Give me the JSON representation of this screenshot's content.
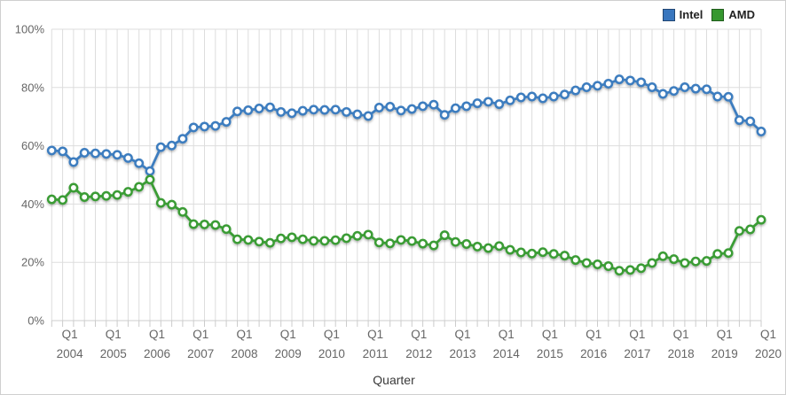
{
  "chart_data": {
    "type": "line",
    "title": "",
    "xlabel": "Quarter",
    "ylabel": "",
    "ylim": [
      0,
      100
    ],
    "grid": true,
    "legend_position": "top-right",
    "y_tick_labels": [
      "0%",
      "20%",
      "40%",
      "60%",
      "80%",
      "100%"
    ],
    "y_tick_values": [
      0,
      20,
      40,
      60,
      80,
      100
    ],
    "x_categories": [
      "Q4 2003",
      "Q1 2004",
      "Q2 2004",
      "Q3 2004",
      "Q4 2004",
      "Q1 2005",
      "Q2 2005",
      "Q3 2005",
      "Q4 2005",
      "Q1 2006",
      "Q2 2006",
      "Q3 2006",
      "Q4 2006",
      "Q1 2007",
      "Q2 2007",
      "Q3 2007",
      "Q4 2007",
      "Q1 2008",
      "Q2 2008",
      "Q3 2008",
      "Q4 2008",
      "Q1 2009",
      "Q2 2009",
      "Q3 2009",
      "Q4 2009",
      "Q1 2010",
      "Q2 2010",
      "Q3 2010",
      "Q4 2010",
      "Q1 2011",
      "Q2 2011",
      "Q3 2011",
      "Q4 2011",
      "Q1 2012",
      "Q2 2012",
      "Q3 2012",
      "Q4 2012",
      "Q1 2013",
      "Q2 2013",
      "Q3 2013",
      "Q4 2013",
      "Q1 2014",
      "Q2 2014",
      "Q3 2014",
      "Q4 2014",
      "Q1 2015",
      "Q2 2015",
      "Q3 2015",
      "Q4 2015",
      "Q1 2016",
      "Q2 2016",
      "Q3 2016",
      "Q4 2016",
      "Q1 2017",
      "Q2 2017",
      "Q3 2017",
      "Q4 2017",
      "Q1 2018",
      "Q2 2018",
      "Q3 2018",
      "Q4 2018",
      "Q1 2019",
      "Q2 2019",
      "Q3 2019",
      "Q4 2019",
      "Q1 2020"
    ],
    "x_tick_labels": [
      {
        "line1": "Q1",
        "line2": "2004"
      },
      {
        "line1": "Q1",
        "line2": "2005"
      },
      {
        "line1": "Q1",
        "line2": "2006"
      },
      {
        "line1": "Q1",
        "line2": "2007"
      },
      {
        "line1": "Q1",
        "line2": "2008"
      },
      {
        "line1": "Q1",
        "line2": "2009"
      },
      {
        "line1": "Q1",
        "line2": "2010"
      },
      {
        "line1": "Q1",
        "line2": "2011"
      },
      {
        "line1": "Q1",
        "line2": "2012"
      },
      {
        "line1": "Q1",
        "line2": "2013"
      },
      {
        "line1": "Q1",
        "line2": "2014"
      },
      {
        "line1": "Q1",
        "line2": "2015"
      },
      {
        "line1": "Q1",
        "line2": "2016"
      },
      {
        "line1": "Q1",
        "line2": "2017"
      },
      {
        "line1": "Q1",
        "line2": "2018"
      },
      {
        "line1": "Q1",
        "line2": "2019"
      },
      {
        "line1": "Q1",
        "line2": "2020"
      }
    ],
    "first_label_index": 1,
    "label_step": 4,
    "series": [
      {
        "name": "Intel",
        "color": "#3d7dbf",
        "swatch_color": "#3876be",
        "values": [
          58.4,
          58.1,
          54.4,
          57.6,
          57.4,
          57.2,
          56.9,
          55.8,
          54.0,
          51.3,
          59.5,
          60.1,
          62.4,
          66.3,
          66.6,
          66.8,
          68.2,
          71.8,
          72.2,
          72.8,
          73.2,
          71.6,
          71.2,
          72.0,
          72.4,
          72.3,
          72.4,
          71.6,
          70.8,
          70.2,
          73.1,
          73.4,
          72.1,
          72.6,
          73.6,
          74.1,
          70.6,
          72.9,
          73.6,
          74.6,
          75.1,
          74.3,
          75.6,
          76.6,
          76.9,
          76.3,
          76.9,
          77.6,
          79.0,
          80.1,
          80.6,
          81.3,
          82.8,
          82.4,
          81.8,
          80.1,
          77.8,
          78.8,
          80.1,
          79.6,
          79.4,
          76.9,
          76.8,
          68.8,
          68.4,
          64.9
        ]
      },
      {
        "name": "AMD",
        "color": "#3a9c35",
        "swatch_color": "#36982f",
        "values": [
          41.6,
          41.4,
          45.6,
          42.4,
          42.6,
          42.8,
          43.1,
          44.2,
          45.9,
          48.4,
          40.4,
          39.8,
          37.3,
          33.1,
          33.0,
          32.8,
          31.4,
          27.9,
          27.7,
          27.1,
          26.7,
          28.2,
          28.6,
          27.9,
          27.4,
          27.4,
          27.6,
          28.3,
          29.1,
          29.5,
          26.8,
          26.5,
          27.7,
          27.3,
          26.4,
          25.8,
          29.3,
          27.0,
          26.3,
          25.4,
          24.9,
          25.6,
          24.3,
          23.4,
          23.0,
          23.5,
          22.9,
          22.3,
          20.8,
          19.8,
          19.3,
          18.7,
          17.1,
          17.4,
          18.0,
          19.8,
          22.1,
          21.1,
          19.8,
          20.3,
          20.5,
          22.9,
          23.2,
          30.8,
          31.3,
          34.6
        ]
      }
    ],
    "colors": {
      "grid_line": "#dddddd",
      "axis_line": "#cccccc",
      "tick_mark": "#cccccc",
      "axis_label": "#666666",
      "marker_fill": "#ffffff"
    }
  }
}
